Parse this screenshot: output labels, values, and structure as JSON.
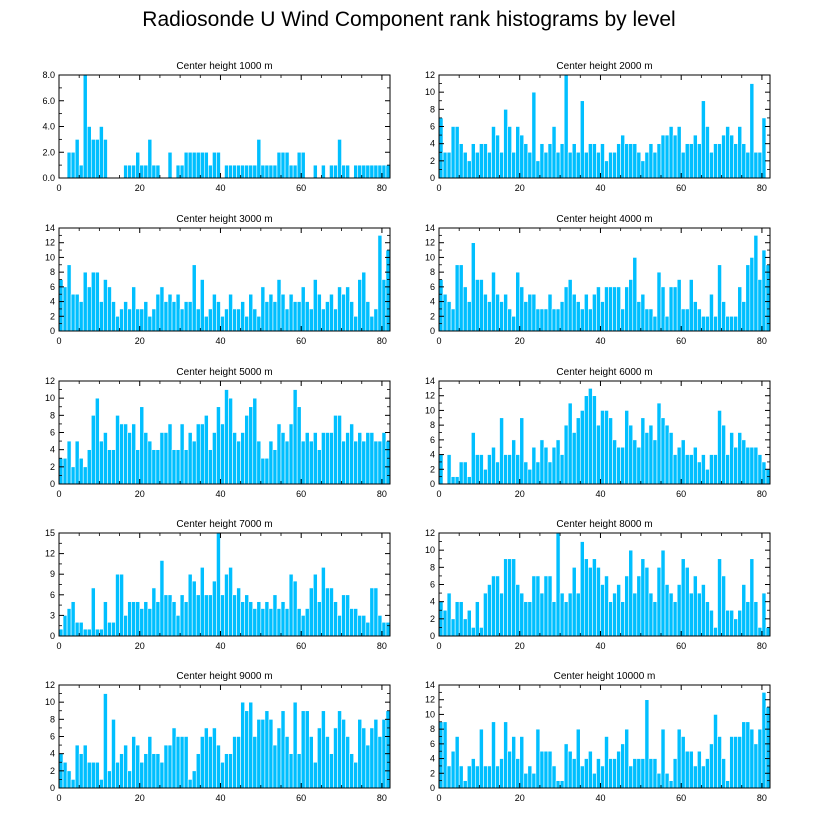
{
  "page_title": "Radiosonde U Wind Component rank histograms by level",
  "colors": {
    "bar": "#00bfff",
    "bar_edge": "#ffffff",
    "axis": "#000000",
    "background": "#ffffff"
  },
  "chart_data": [
    {
      "type": "bar",
      "title": "Center height 1000 m",
      "xlim": [
        0,
        82
      ],
      "ylim": [
        0,
        8
      ],
      "yticks": [
        0,
        2,
        4,
        6,
        8
      ],
      "ytick_labels": [
        "0.0",
        "2.0",
        "4.0",
        "6.0",
        "8.0"
      ],
      "xticks": [
        0,
        20,
        40,
        60,
        80
      ],
      "ytick_side": "left",
      "values": [
        0,
        0,
        2,
        2,
        3,
        1,
        8,
        4,
        3,
        3,
        4,
        3,
        0,
        0,
        0,
        0,
        1,
        1,
        1,
        2,
        1,
        1,
        3,
        1,
        1,
        0,
        0,
        2,
        0,
        1,
        1,
        2,
        2,
        2,
        2,
        2,
        2,
        1,
        2,
        2,
        0,
        1,
        1,
        1,
        1,
        1,
        1,
        1,
        1,
        3,
        1,
        1,
        1,
        1,
        2,
        2,
        2,
        1,
        1,
        2,
        2,
        0,
        0,
        1,
        0,
        1,
        0,
        1,
        1,
        3,
        1,
        1,
        0,
        1,
        1,
        1,
        1,
        1,
        1,
        1,
        1,
        1
      ]
    },
    {
      "type": "bar",
      "title": "Center height 2000 m",
      "xlim": [
        0,
        82
      ],
      "ylim": [
        0,
        12
      ],
      "yticks": [
        0,
        2,
        4,
        6,
        8,
        10,
        12
      ],
      "ytick_labels": [
        "0",
        "2",
        "4",
        "6",
        "8",
        "10",
        "12"
      ],
      "xticks": [
        0,
        20,
        40,
        60,
        80
      ],
      "ytick_side": "left",
      "values": [
        7,
        3,
        3,
        6,
        6,
        4,
        3,
        2,
        4,
        3,
        4,
        4,
        3,
        6,
        5,
        3,
        8,
        6,
        3,
        6,
        5,
        4,
        3,
        10,
        2,
        4,
        3,
        4,
        6,
        3,
        4,
        12,
        3,
        4,
        3,
        9,
        3,
        4,
        4,
        3,
        4,
        2,
        3,
        3,
        4,
        5,
        4,
        4,
        4,
        3,
        2,
        3,
        4,
        3,
        4,
        5,
        5,
        6,
        5,
        6,
        3,
        4,
        4,
        5,
        4,
        9,
        6,
        3,
        4,
        4,
        5,
        6,
        5,
        4,
        6,
        4,
        3,
        11,
        3,
        3,
        7,
        0
      ]
    },
    {
      "type": "bar",
      "title": "Center height 3000 m",
      "xlim": [
        0,
        82
      ],
      "ylim": [
        0,
        14
      ],
      "yticks": [
        0,
        2,
        4,
        6,
        8,
        10,
        12,
        14
      ],
      "ytick_labels": [
        "0",
        "2",
        "4",
        "6",
        "8",
        "10",
        "12",
        "14"
      ],
      "xticks": [
        0,
        20,
        40,
        60,
        80
      ],
      "ytick_side": "left",
      "values": [
        7,
        6,
        9,
        5,
        5,
        4,
        8,
        6,
        8,
        8,
        4,
        7,
        6,
        4,
        2,
        3,
        4,
        3,
        6,
        3,
        3,
        4,
        2,
        3,
        5,
        6,
        4,
        5,
        4,
        5,
        3,
        4,
        4,
        9,
        3,
        7,
        2,
        3,
        5,
        4,
        2,
        3,
        5,
        3,
        3,
        4,
        2,
        5,
        3,
        2,
        6,
        4,
        5,
        4,
        7,
        5,
        3,
        5,
        4,
        4,
        6,
        4,
        3,
        7,
        5,
        3,
        4,
        5,
        3,
        6,
        5,
        6,
        4,
        2,
        7,
        8,
        4,
        2,
        3,
        13,
        7,
        11
      ]
    },
    {
      "type": "bar",
      "title": "Center height 4000 m",
      "xlim": [
        0,
        82
      ],
      "ylim": [
        0,
        14
      ],
      "yticks": [
        0,
        2,
        4,
        6,
        8,
        10,
        12,
        14
      ],
      "ytick_labels": [
        "0",
        "2",
        "4",
        "6",
        "8",
        "10",
        "12",
        "14"
      ],
      "xticks": [
        0,
        20,
        40,
        60,
        80
      ],
      "ytick_side": "left",
      "values": [
        7,
        5,
        4,
        3,
        9,
        9,
        6,
        4,
        12,
        7,
        7,
        5,
        4,
        8,
        5,
        4,
        5,
        3,
        2,
        8,
        6,
        4,
        5,
        5,
        3,
        3,
        3,
        5,
        3,
        3,
        4,
        6,
        7,
        5,
        4,
        3,
        5,
        3,
        5,
        6,
        4,
        6,
        6,
        6,
        6,
        3,
        6,
        7,
        10,
        4,
        5,
        3,
        3,
        2,
        8,
        6,
        2,
        6,
        6,
        7,
        3,
        3,
        7,
        4,
        3,
        2,
        2,
        5,
        2,
        9,
        4,
        2,
        2,
        2,
        6,
        4,
        9,
        10,
        13,
        7,
        11,
        9
      ]
    },
    {
      "type": "bar",
      "title": "Center height 5000 m",
      "xlim": [
        0,
        82
      ],
      "ylim": [
        0,
        12
      ],
      "yticks": [
        0,
        2,
        4,
        6,
        8,
        10,
        12
      ],
      "ytick_labels": [
        "0",
        "2",
        "4",
        "6",
        "8",
        "10",
        "12"
      ],
      "xticks": [
        0,
        20,
        40,
        60,
        80
      ],
      "ytick_side": "left",
      "values": [
        3,
        3,
        5,
        2,
        5,
        3,
        2,
        4,
        8,
        10,
        5,
        6,
        4,
        4,
        8,
        7,
        7,
        6,
        7,
        4,
        9,
        6,
        5,
        4,
        4,
        6,
        6,
        7,
        4,
        4,
        7,
        4,
        6,
        5,
        7,
        7,
        8,
        4,
        6,
        9,
        7,
        11,
        10,
        6,
        5,
        6,
        8,
        9,
        10,
        5,
        3,
        3,
        5,
        4,
        7,
        6,
        5,
        7,
        11,
        9,
        5,
        6,
        5,
        6,
        4,
        6,
        6,
        6,
        8,
        8,
        5,
        6,
        7,
        5,
        6,
        5,
        6,
        6,
        5,
        5,
        6,
        5
      ]
    },
    {
      "type": "bar",
      "title": "Center height 6000 m",
      "xlim": [
        0,
        82
      ],
      "ylim": [
        0,
        14
      ],
      "yticks": [
        0,
        2,
        4,
        6,
        8,
        10,
        12,
        14
      ],
      "ytick_labels": [
        "0",
        "2",
        "4",
        "6",
        "8",
        "10",
        "12",
        "14"
      ],
      "xticks": [
        0,
        20,
        40,
        60,
        80
      ],
      "ytick_side": "left",
      "values": [
        4,
        0,
        4,
        1,
        1,
        3,
        3,
        1,
        7,
        4,
        4,
        2,
        4,
        5,
        3,
        9,
        4,
        4,
        6,
        4,
        9,
        3,
        2,
        5,
        3,
        6,
        5,
        3,
        5,
        6,
        4,
        8,
        11,
        7,
        9,
        10,
        12,
        13,
        12,
        8,
        10,
        10,
        9,
        6,
        5,
        5,
        10,
        8,
        6,
        5,
        9,
        7,
        8,
        6,
        11,
        9,
        8,
        7,
        4,
        5,
        6,
        4,
        4,
        5,
        3,
        4,
        2,
        4,
        4,
        10,
        8,
        4,
        7,
        5,
        7,
        6,
        5,
        5,
        5,
        4,
        3,
        2
      ]
    },
    {
      "type": "bar",
      "title": "Center height 7000 m",
      "xlim": [
        0,
        82
      ],
      "ylim": [
        0,
        15
      ],
      "yticks": [
        0,
        3,
        6,
        9,
        12,
        15
      ],
      "ytick_labels": [
        "0",
        "3",
        "6",
        "9",
        "12",
        "15"
      ],
      "xticks": [
        0,
        20,
        40,
        60,
        80
      ],
      "ytick_side": "left",
      "values": [
        1,
        3,
        4,
        5,
        2,
        2,
        1,
        1,
        7,
        1,
        1,
        5,
        2,
        2,
        9,
        9,
        3,
        5,
        5,
        5,
        4,
        5,
        4,
        7,
        5,
        11,
        6,
        6,
        5,
        3,
        6,
        5,
        9,
        8,
        6,
        10,
        6,
        6,
        8,
        15,
        6,
        9,
        10,
        6,
        7,
        5,
        6,
        5,
        4,
        5,
        4,
        5,
        4,
        6,
        4,
        5,
        4,
        9,
        8,
        4,
        3,
        4,
        7,
        9,
        5,
        10,
        7,
        7,
        5,
        3,
        6,
        6,
        4,
        4,
        3,
        3,
        2,
        7,
        7,
        3,
        2,
        2
      ]
    },
    {
      "type": "bar",
      "title": "Center height 8000 m",
      "xlim": [
        0,
        82
      ],
      "ylim": [
        0,
        12
      ],
      "yticks": [
        0,
        2,
        4,
        6,
        8,
        10,
        12
      ],
      "ytick_labels": [
        "0",
        "2",
        "4",
        "6",
        "8",
        "10",
        "12"
      ],
      "xticks": [
        0,
        20,
        40,
        60,
        80
      ],
      "ytick_side": "left",
      "values": [
        4,
        3,
        5,
        2,
        4,
        4,
        2,
        3,
        1,
        4,
        1,
        5,
        6,
        7,
        7,
        5,
        9,
        9,
        9,
        6,
        5,
        4,
        4,
        7,
        7,
        5,
        7,
        7,
        4,
        12,
        5,
        4,
        5,
        8,
        5,
        11,
        9,
        8,
        9,
        8,
        6,
        7,
        4,
        5,
        6,
        4,
        7,
        10,
        5,
        7,
        9,
        8,
        5,
        4,
        8,
        10,
        6,
        5,
        4,
        6,
        9,
        8,
        5,
        7,
        5,
        6,
        4,
        3,
        1,
        9,
        7,
        3,
        3,
        2,
        3,
        6,
        4,
        9,
        4,
        1,
        5,
        1
      ]
    },
    {
      "type": "bar",
      "title": "Center height 9000 m",
      "xlim": [
        0,
        82
      ],
      "ylim": [
        0,
        12
      ],
      "yticks": [
        0,
        2,
        4,
        6,
        8,
        10,
        12
      ],
      "ytick_labels": [
        "0",
        "2",
        "4",
        "6",
        "8",
        "10",
        "12"
      ],
      "xticks": [
        0,
        20,
        40,
        60,
        80
      ],
      "ytick_side": "left",
      "values": [
        4,
        3,
        2,
        1,
        5,
        4,
        5,
        3,
        3,
        3,
        1,
        11,
        2,
        8,
        3,
        4,
        5,
        2,
        6,
        5,
        3,
        4,
        6,
        4,
        4,
        3,
        5,
        5,
        7,
        6,
        6,
        6,
        1,
        2,
        4,
        6,
        7,
        6,
        7,
        5,
        3,
        4,
        4,
        6,
        6,
        10,
        9,
        10,
        6,
        8,
        8,
        9,
        8,
        5,
        7,
        9,
        6,
        4,
        10,
        4,
        9,
        9,
        6,
        3,
        7,
        9,
        6,
        4,
        7,
        9,
        8,
        6,
        4,
        3,
        8,
        7,
        5,
        7,
        8,
        6,
        8,
        9
      ]
    },
    {
      "type": "bar",
      "title": "Center height 10000 m",
      "xlim": [
        0,
        82
      ],
      "ylim": [
        0,
        14
      ],
      "yticks": [
        0,
        2,
        4,
        6,
        8,
        10,
        12,
        14
      ],
      "ytick_labels": [
        "0",
        "2",
        "4",
        "6",
        "8",
        "10",
        "12",
        "14"
      ],
      "xticks": [
        0,
        20,
        40,
        60,
        80
      ],
      "ytick_side": "left",
      "values": [
        9,
        9,
        3,
        5,
        7,
        3,
        1,
        3,
        4,
        3,
        8,
        3,
        3,
        9,
        3,
        4,
        9,
        5,
        7,
        4,
        7,
        2,
        3,
        2,
        8,
        5,
        5,
        5,
        3,
        1,
        1,
        6,
        5,
        4,
        8,
        3,
        4,
        5,
        2,
        4,
        3,
        7,
        4,
        4,
        5,
        6,
        8,
        3,
        4,
        4,
        4,
        12,
        4,
        4,
        2,
        8,
        2,
        1,
        4,
        8,
        7,
        5,
        5,
        3,
        5,
        3,
        4,
        6,
        10,
        7,
        4,
        1,
        7,
        7,
        7,
        9,
        9,
        8,
        6,
        8,
        13,
        11
      ]
    }
  ]
}
